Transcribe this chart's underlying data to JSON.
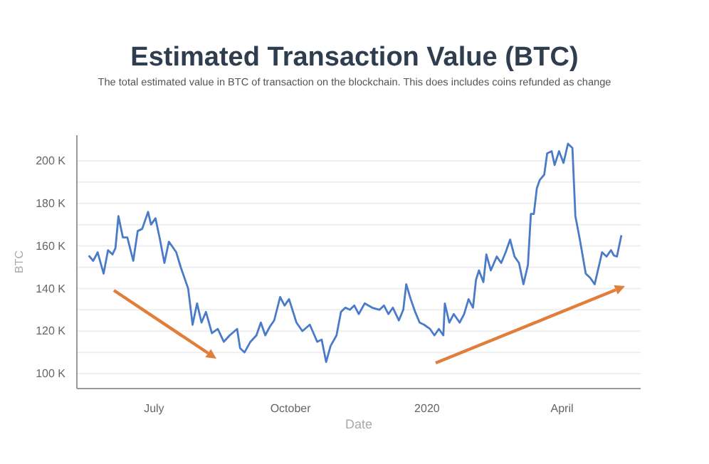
{
  "chart_data": {
    "type": "line",
    "title": "Estimated Transaction Value (BTC)",
    "subtitle": "The total estimated value in BTC of transaction on the blockchain. This does includes coins refunded as change",
    "xlabel": "Date",
    "ylabel": "BTC",
    "grid": "y",
    "marker": "none",
    "line_style": "solid",
    "xlim": [
      "2019-05-10",
      "2020-05-24"
    ],
    "ylim": [
      93,
      212
    ],
    "xticks": [
      {
        "value": "2019-07-01",
        "label": "July"
      },
      {
        "value": "2019-10-01",
        "label": "October"
      },
      {
        "value": "2020-01-01",
        "label": "2020"
      },
      {
        "value": "2020-04-01",
        "label": "April"
      }
    ],
    "yticks": [
      {
        "value": 100,
        "label": "100 K"
      },
      {
        "value": 110,
        "label": null
      },
      {
        "value": 120,
        "label": "120 K"
      },
      {
        "value": 130,
        "label": null
      },
      {
        "value": 140,
        "label": "140 K"
      },
      {
        "value": 150,
        "label": null
      },
      {
        "value": 160,
        "label": "160 K"
      },
      {
        "value": 170,
        "label": null
      },
      {
        "value": 180,
        "label": "180 K"
      },
      {
        "value": 190,
        "label": null
      },
      {
        "value": 200,
        "label": "200 K"
      }
    ],
    "x": [
      "2019-05-18",
      "2019-05-21",
      "2019-05-24",
      "2019-05-28",
      "2019-05-31",
      "2019-06-03",
      "2019-06-05",
      "2019-06-07",
      "2019-06-10",
      "2019-06-13",
      "2019-06-17",
      "2019-06-20",
      "2019-06-23",
      "2019-06-27",
      "2019-06-29",
      "2019-07-02",
      "2019-07-05",
      "2019-07-08",
      "2019-07-11",
      "2019-07-13",
      "2019-07-16",
      "2019-07-19",
      "2019-07-24",
      "2019-07-27",
      "2019-07-30",
      "2019-08-02",
      "2019-08-05",
      "2019-08-09",
      "2019-08-13",
      "2019-08-17",
      "2019-08-21",
      "2019-08-26",
      "2019-08-28",
      "2019-08-31",
      "2019-09-04",
      "2019-09-08",
      "2019-09-11",
      "2019-09-14",
      "2019-09-17",
      "2019-09-20",
      "2019-09-24",
      "2019-09-27",
      "2019-09-30",
      "2019-10-05",
      "2019-10-09",
      "2019-10-14",
      "2019-10-19",
      "2019-10-22",
      "2019-10-25",
      "2019-10-28",
      "2019-11-01",
      "2019-11-04",
      "2019-11-07",
      "2019-11-10",
      "2019-11-13",
      "2019-11-16",
      "2019-11-20",
      "2019-11-25",
      "2019-11-30",
      "2019-12-03",
      "2019-12-06",
      "2019-12-09",
      "2019-12-13",
      "2019-12-16",
      "2019-12-18",
      "2019-12-21",
      "2019-12-24",
      "2019-12-27",
      "2019-12-30",
      "2020-01-03",
      "2020-01-06",
      "2020-01-09",
      "2020-01-12",
      "2020-01-13",
      "2020-01-16",
      "2020-01-19",
      "2020-01-23",
      "2020-01-26",
      "2020-01-29",
      "2020-02-01",
      "2020-02-03",
      "2020-02-05",
      "2020-02-08",
      "2020-02-10",
      "2020-02-13",
      "2020-02-17",
      "2020-02-20",
      "2020-02-23",
      "2020-02-26",
      "2020-02-29",
      "2020-03-03",
      "2020-03-06",
      "2020-03-09",
      "2020-03-11",
      "2020-03-13",
      "2020-03-15",
      "2020-03-17",
      "2020-03-20",
      "2020-03-22",
      "2020-03-25",
      "2020-03-27",
      "2020-03-30",
      "2020-04-02",
      "2020-04-05",
      "2020-04-08",
      "2020-04-10",
      "2020-04-13",
      "2020-04-15",
      "2020-04-17",
      "2020-04-20",
      "2020-04-23",
      "2020-04-26",
      "2020-04-28",
      "2020-05-01",
      "2020-05-04",
      "2020-05-06",
      "2020-05-08",
      "2020-05-11"
    ],
    "series": [
      {
        "color": "#4a7bc8",
        "values": [
          155.5,
          153,
          157,
          147,
          158,
          156,
          159,
          174,
          164,
          164,
          153,
          167,
          168,
          176,
          170,
          173,
          163,
          152,
          162,
          160,
          157,
          150,
          140,
          123,
          133,
          124,
          129,
          119,
          121,
          115,
          118,
          121,
          112,
          110,
          115,
          118,
          124,
          118,
          122,
          125,
          136,
          132,
          135,
          124,
          120,
          123,
          115,
          116,
          105.5,
          113,
          118,
          129,
          131,
          130,
          132,
          128,
          133,
          131,
          130,
          132,
          128,
          131,
          125,
          130,
          142,
          135,
          129,
          124,
          123,
          121,
          118,
          121,
          118,
          133,
          124,
          128,
          124,
          128,
          135,
          131,
          144,
          148.5,
          143,
          156,
          148.5,
          155,
          152,
          157,
          163,
          155,
          152,
          142,
          151,
          175,
          175,
          187,
          191,
          193.5,
          203.5,
          204.5,
          198,
          204.5,
          199,
          208,
          206,
          174,
          163,
          155,
          147,
          145,
          142,
          151,
          157,
          155,
          158,
          155.5,
          155,
          165
        ]
      }
    ]
  }
}
